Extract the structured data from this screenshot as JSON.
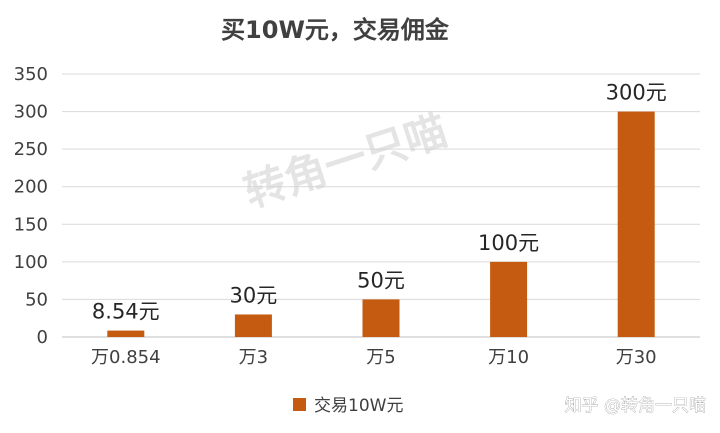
{
  "chart_data": {
    "type": "bar",
    "title": "买10W元，交易佣金",
    "categories": [
      "万0.854",
      "万3",
      "万5",
      "万10",
      "万30"
    ],
    "series": [
      {
        "name": "交易10W元",
        "values": [
          8.54,
          30,
          50,
          100,
          300
        ],
        "color": "#c55a11"
      }
    ],
    "data_labels": [
      "8.54元",
      "30元",
      "50元",
      "100元",
      "300元"
    ],
    "ylim": [
      0,
      350
    ],
    "yticks": [
      0,
      50,
      100,
      150,
      200,
      250,
      300,
      350
    ],
    "xlabel": "",
    "ylabel": "",
    "grid": true,
    "legend_position": "bottom"
  },
  "watermark": "转角一只喵",
  "credit": "知乎 @转角一只喵"
}
